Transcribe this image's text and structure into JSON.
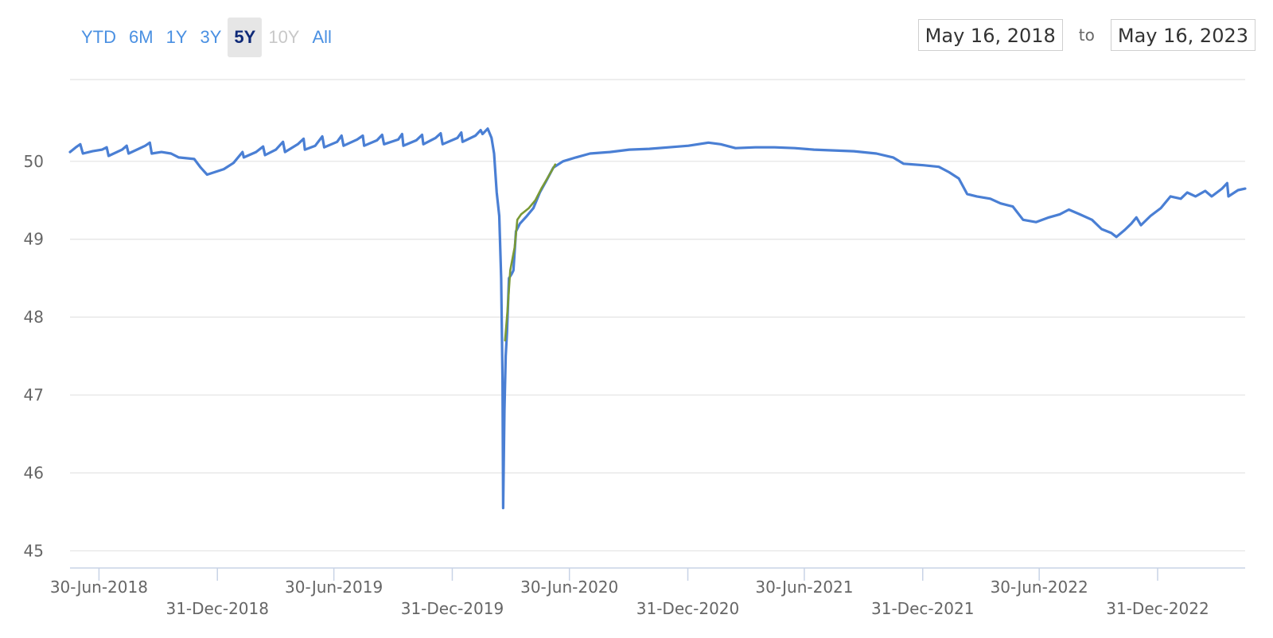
{
  "range_selector": {
    "buttons": [
      {
        "label": "YTD",
        "state": "normal"
      },
      {
        "label": "6M",
        "state": "normal"
      },
      {
        "label": "1Y",
        "state": "normal"
      },
      {
        "label": "3Y",
        "state": "normal"
      },
      {
        "label": "5Y",
        "state": "selected"
      },
      {
        "label": "10Y",
        "state": "disabled"
      },
      {
        "label": "All",
        "state": "normal"
      }
    ]
  },
  "date_range": {
    "from": "May 16, 2018",
    "to_label": "to",
    "to": "May 16, 2023"
  },
  "colors": {
    "series_blue": "#4a7fd4",
    "series_green": "#7a9a35",
    "grid": "#e3e3e3",
    "axis": "#c8d3e6",
    "button_text": "#4a90e2",
    "button_selected_text": "#0f2a78",
    "button_selected_bg": "#e6e6e6",
    "button_disabled_text": "#c8c8c8"
  },
  "chart_data": {
    "type": "line",
    "title": "",
    "xlabel": "",
    "ylabel": "",
    "x_range": [
      "2018-05-16",
      "2023-05-16"
    ],
    "ylim": [
      44.8,
      51.05
    ],
    "y_ticks": [
      45,
      46,
      47,
      48,
      49,
      50
    ],
    "grid": true,
    "legend": "none",
    "x_ticks": [
      {
        "date": "2018-06-30",
        "label": "30-Jun-2018",
        "row": 1
      },
      {
        "date": "2018-12-31",
        "label": "31-Dec-2018",
        "row": 2
      },
      {
        "date": "2019-06-30",
        "label": "30-Jun-2019",
        "row": 1
      },
      {
        "date": "2019-12-31",
        "label": "31-Dec-2019",
        "row": 2
      },
      {
        "date": "2020-06-30",
        "label": "30-Jun-2020",
        "row": 1
      },
      {
        "date": "2020-12-31",
        "label": "31-Dec-2020",
        "row": 2
      },
      {
        "date": "2021-06-30",
        "label": "30-Jun-2021",
        "row": 1
      },
      {
        "date": "2021-12-31",
        "label": "31-Dec-2021",
        "row": 2
      },
      {
        "date": "2022-06-30",
        "label": "30-Jun-2022",
        "row": 1
      },
      {
        "date": "2022-12-31",
        "label": "31-Dec-2022",
        "row": 2
      }
    ],
    "series": [
      {
        "color": "#4a7fd4",
        "points": [
          [
            "2018-05-16",
            50.12
          ],
          [
            "2018-05-25",
            50.18
          ],
          [
            "2018-06-01",
            50.22
          ],
          [
            "2018-06-05",
            50.1
          ],
          [
            "2018-06-20",
            50.13
          ],
          [
            "2018-07-05",
            50.15
          ],
          [
            "2018-07-12",
            50.18
          ],
          [
            "2018-07-15",
            50.07
          ],
          [
            "2018-08-05",
            50.15
          ],
          [
            "2018-08-12",
            50.2
          ],
          [
            "2018-08-15",
            50.1
          ],
          [
            "2018-09-10",
            50.2
          ],
          [
            "2018-09-17",
            50.24
          ],
          [
            "2018-09-20",
            50.1
          ],
          [
            "2018-10-05",
            50.12
          ],
          [
            "2018-10-20",
            50.1
          ],
          [
            "2018-11-01",
            50.05
          ],
          [
            "2018-11-25",
            50.03
          ],
          [
            "2018-12-05",
            49.92
          ],
          [
            "2018-12-15",
            49.83
          ],
          [
            "2019-01-10",
            49.9
          ],
          [
            "2019-01-25",
            49.98
          ],
          [
            "2019-02-08",
            50.12
          ],
          [
            "2019-02-10",
            50.05
          ],
          [
            "2019-03-01",
            50.12
          ],
          [
            "2019-03-12",
            50.19
          ],
          [
            "2019-03-15",
            50.08
          ],
          [
            "2019-04-01",
            50.15
          ],
          [
            "2019-04-12",
            50.25
          ],
          [
            "2019-04-15",
            50.12
          ],
          [
            "2019-05-05",
            50.22
          ],
          [
            "2019-05-14",
            50.29
          ],
          [
            "2019-05-16",
            50.15
          ],
          [
            "2019-06-01",
            50.2
          ],
          [
            "2019-06-12",
            50.32
          ],
          [
            "2019-06-15",
            50.18
          ],
          [
            "2019-07-05",
            50.25
          ],
          [
            "2019-07-12",
            50.33
          ],
          [
            "2019-07-15",
            50.2
          ],
          [
            "2019-08-05",
            50.28
          ],
          [
            "2019-08-14",
            50.33
          ],
          [
            "2019-08-16",
            50.2
          ],
          [
            "2019-09-05",
            50.27
          ],
          [
            "2019-09-13",
            50.34
          ],
          [
            "2019-09-16",
            50.22
          ],
          [
            "2019-10-08",
            50.28
          ],
          [
            "2019-10-14",
            50.35
          ],
          [
            "2019-10-16",
            50.2
          ],
          [
            "2019-11-05",
            50.27
          ],
          [
            "2019-11-14",
            50.34
          ],
          [
            "2019-11-16",
            50.22
          ],
          [
            "2019-12-05",
            50.3
          ],
          [
            "2019-12-13",
            50.36
          ],
          [
            "2019-12-16",
            50.22
          ],
          [
            "2020-01-08",
            50.3
          ],
          [
            "2020-01-14",
            50.37
          ],
          [
            "2020-01-16",
            50.25
          ],
          [
            "2020-02-05",
            50.33
          ],
          [
            "2020-02-13",
            50.4
          ],
          [
            "2020-02-16",
            50.35
          ],
          [
            "2020-02-24",
            50.42
          ],
          [
            "2020-03-01",
            50.3
          ],
          [
            "2020-03-05",
            50.1
          ],
          [
            "2020-03-09",
            49.6
          ],
          [
            "2020-03-13",
            49.3
          ],
          [
            "2020-03-16",
            48.5
          ],
          [
            "2020-03-18",
            47.2
          ],
          [
            "2020-03-19",
            45.55
          ],
          [
            "2020-03-21",
            46.8
          ],
          [
            "2020-03-23",
            47.5
          ],
          [
            "2020-03-25",
            47.8
          ],
          [
            "2020-03-28",
            48.5
          ],
          [
            "2020-04-01",
            48.55
          ],
          [
            "2020-04-04",
            48.6
          ],
          [
            "2020-04-08",
            49.1
          ],
          [
            "2020-04-14",
            49.2
          ],
          [
            "2020-04-25",
            49.3
          ],
          [
            "2020-05-05",
            49.4
          ],
          [
            "2020-05-15",
            49.6
          ],
          [
            "2020-05-25",
            49.75
          ],
          [
            "2020-06-05",
            49.92
          ],
          [
            "2020-06-20",
            50.0
          ],
          [
            "2020-07-10",
            50.05
          ],
          [
            "2020-08-01",
            50.1
          ],
          [
            "2020-09-01",
            50.12
          ],
          [
            "2020-10-01",
            50.15
          ],
          [
            "2020-11-01",
            50.16
          ],
          [
            "2020-12-01",
            50.18
          ],
          [
            "2021-01-01",
            50.2
          ],
          [
            "2021-02-01",
            50.24
          ],
          [
            "2021-02-20",
            50.22
          ],
          [
            "2021-03-15",
            50.17
          ],
          [
            "2021-04-15",
            50.18
          ],
          [
            "2021-05-15",
            50.18
          ],
          [
            "2021-06-15",
            50.17
          ],
          [
            "2021-07-15",
            50.15
          ],
          [
            "2021-08-15",
            50.14
          ],
          [
            "2021-09-15",
            50.13
          ],
          [
            "2021-10-20",
            50.1
          ],
          [
            "2021-11-15",
            50.05
          ],
          [
            "2021-12-01",
            49.97
          ],
          [
            "2022-01-01",
            49.95
          ],
          [
            "2022-01-25",
            49.93
          ],
          [
            "2022-02-10",
            49.86
          ],
          [
            "2022-02-25",
            49.78
          ],
          [
            "2022-03-10",
            49.58
          ],
          [
            "2022-03-25",
            49.55
          ],
          [
            "2022-04-15",
            49.52
          ],
          [
            "2022-05-01",
            49.46
          ],
          [
            "2022-05-20",
            49.42
          ],
          [
            "2022-06-05",
            49.25
          ],
          [
            "2022-06-25",
            49.22
          ],
          [
            "2022-07-15",
            49.28
          ],
          [
            "2022-08-01",
            49.32
          ],
          [
            "2022-08-15",
            49.38
          ],
          [
            "2022-09-01",
            49.32
          ],
          [
            "2022-09-20",
            49.25
          ],
          [
            "2022-10-05",
            49.13
          ],
          [
            "2022-10-20",
            49.08
          ],
          [
            "2022-10-28",
            49.03
          ],
          [
            "2022-11-10",
            49.12
          ],
          [
            "2022-11-20",
            49.2
          ],
          [
            "2022-11-28",
            49.28
          ],
          [
            "2022-12-05",
            49.18
          ],
          [
            "2022-12-20",
            49.3
          ],
          [
            "2023-01-05",
            49.4
          ],
          [
            "2023-01-20",
            49.55
          ],
          [
            "2023-02-05",
            49.52
          ],
          [
            "2023-02-15",
            49.6
          ],
          [
            "2023-02-28",
            49.55
          ],
          [
            "2023-03-15",
            49.62
          ],
          [
            "2023-03-25",
            49.55
          ],
          [
            "2023-04-10",
            49.65
          ],
          [
            "2023-04-18",
            49.72
          ],
          [
            "2023-04-20",
            49.55
          ],
          [
            "2023-05-05",
            49.63
          ],
          [
            "2023-05-16",
            49.65
          ]
        ]
      },
      {
        "color": "#7a9a35",
        "points": [
          [
            "2020-03-22",
            47.7
          ],
          [
            "2020-03-26",
            48.1
          ],
          [
            "2020-03-30",
            48.6
          ],
          [
            "2020-04-06",
            48.9
          ],
          [
            "2020-04-10",
            49.25
          ],
          [
            "2020-04-16",
            49.32
          ],
          [
            "2020-04-28",
            49.4
          ],
          [
            "2020-05-08",
            49.5
          ],
          [
            "2020-05-18",
            49.66
          ],
          [
            "2020-05-28",
            49.8
          ],
          [
            "2020-06-08",
            49.96
          ]
        ]
      }
    ]
  }
}
